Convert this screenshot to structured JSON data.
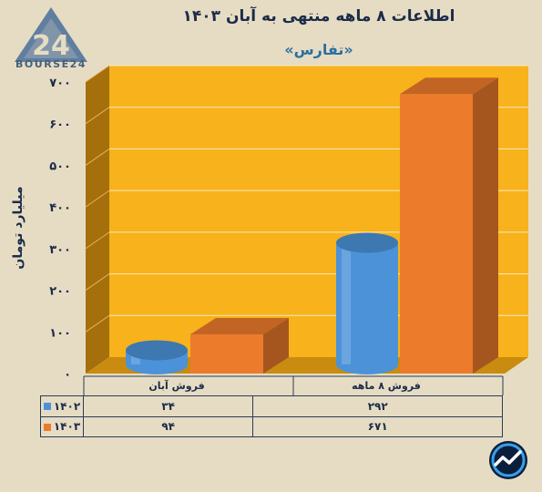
{
  "header": {
    "title": "اطلاعات ۸ ماهه منتهی به آبان ۱۴۰۳",
    "subtitle": "«تفارس»",
    "brand": "BOURSE24",
    "logo_mark": "24"
  },
  "icons": {
    "brand_logo": "bourse24-logo-icon",
    "corner_badge": "chart-trend-badge-icon"
  },
  "colors": {
    "background": "#e6dcc4",
    "plot_area": "#f7b21c",
    "side_wall": "#a56f0c",
    "floor": "#c98c10",
    "series_1402": "#4b92d8",
    "series_1403": "#ec7b2c"
  },
  "chart_data": {
    "type": "bar",
    "title": "اطلاعات ۸ ماهه منتهی به آبان ۱۴۰۳",
    "subtitle": "«تفارس»",
    "ylabel": "میلیارد تومان",
    "xlabel": "",
    "ylim": [
      0,
      700
    ],
    "yticks": [
      0,
      100,
      200,
      300,
      400,
      500,
      600,
      700
    ],
    "ytick_labels": [
      "۰",
      "۱۰۰",
      "۲۰۰",
      "۳۰۰",
      "۴۰۰",
      "۵۰۰",
      "۶۰۰",
      "۷۰۰"
    ],
    "grid": true,
    "categories": [
      "فروش ۸ ماهه",
      "فروش آبان"
    ],
    "series": [
      {
        "name": "۱۴۰۲",
        "values": [
          292,
          34
        ],
        "value_labels": [
          "۲۹۲",
          "۳۴"
        ],
        "shape": "cylinder",
        "color": "#4b92d8"
      },
      {
        "name": "۱۴۰۳",
        "values": [
          671,
          94
        ],
        "value_labels": [
          "۶۷۱",
          "۹۴"
        ],
        "shape": "box",
        "color": "#ec7b2c"
      }
    ],
    "legend": "data-table-left"
  }
}
